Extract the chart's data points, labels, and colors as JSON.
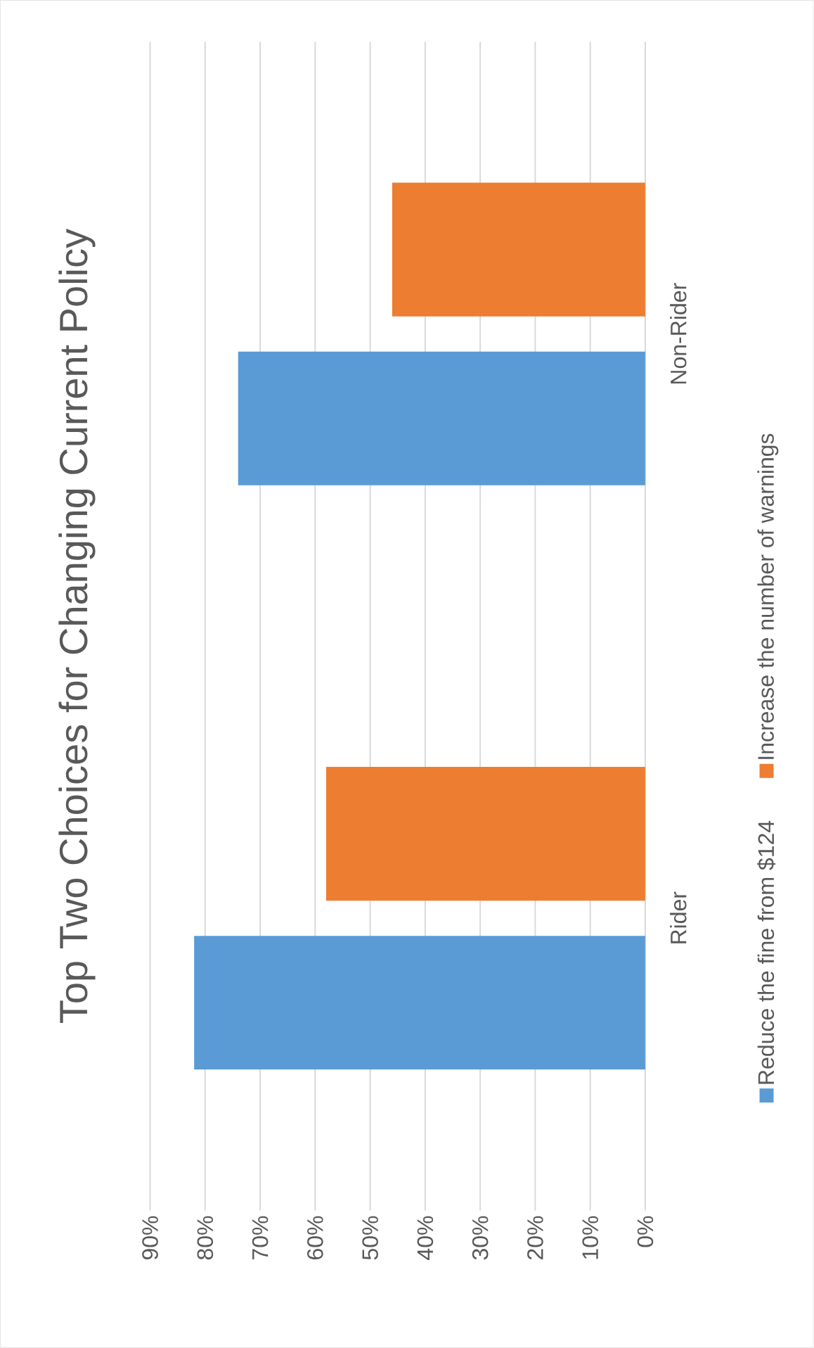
{
  "chart_data": {
    "type": "bar",
    "orientation": "horizontal",
    "title": "Top Two Choices for Changing Current Policy",
    "categories": [
      "Non-Rider",
      "Rider"
    ],
    "series": [
      {
        "name": "Reduce the fine from $124",
        "color": "#5b9bd5",
        "values": [
          74,
          82
        ]
      },
      {
        "name": "Increase the number of warnings",
        "color": "#ed7d31",
        "values": [
          46,
          58
        ]
      }
    ],
    "xlim": [
      90,
      0
    ],
    "xticks": [
      {
        "value": 0,
        "label": "0%"
      },
      {
        "value": 10,
        "label": "10%"
      },
      {
        "value": 20,
        "label": "20%"
      },
      {
        "value": 30,
        "label": "30%"
      },
      {
        "value": 40,
        "label": "40%"
      },
      {
        "value": 50,
        "label": "50%"
      },
      {
        "value": 60,
        "label": "60%"
      },
      {
        "value": 70,
        "label": "70%"
      },
      {
        "value": 80,
        "label": "80%"
      },
      {
        "value": 90,
        "label": "90%"
      }
    ],
    "grid": "x",
    "legend": "right"
  }
}
